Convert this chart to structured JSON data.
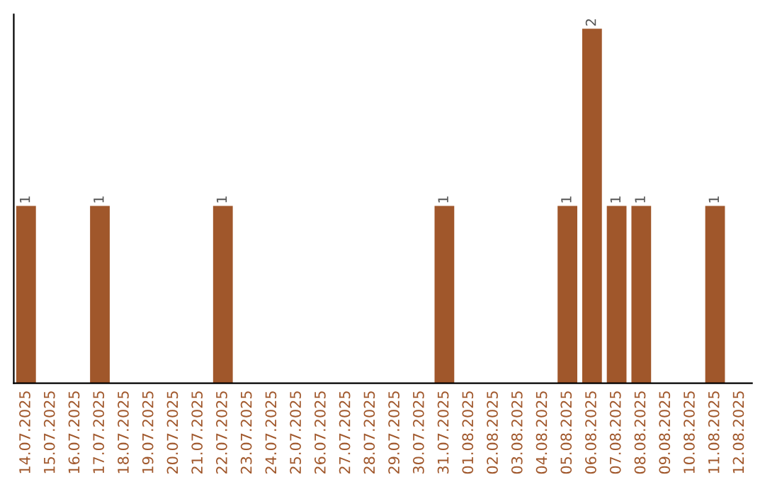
{
  "chart_data": {
    "type": "bar",
    "categories": [
      "14.07.2025",
      "15.07.2025",
      "16.07.2025",
      "17.07.2025",
      "18.07.2025",
      "19.07.2025",
      "20.07.2025",
      "21.07.2025",
      "22.07.2025",
      "23.07.2025",
      "24.07.2025",
      "25.07.2025",
      "26.07.2025",
      "27.07.2025",
      "28.07.2025",
      "29.07.2025",
      "30.07.2025",
      "31.07.2025",
      "01.08.2025",
      "02.08.2025",
      "03.08.2025",
      "04.08.2025",
      "05.08.2025",
      "06.08.2025",
      "07.08.2025",
      "08.08.2025",
      "09.08.2025",
      "10.08.2025",
      "11.08.2025",
      "12.08.2025"
    ],
    "values": [
      1,
      0,
      0,
      1,
      0,
      0,
      0,
      0,
      1,
      0,
      0,
      0,
      0,
      0,
      0,
      0,
      0,
      1,
      0,
      0,
      0,
      0,
      1,
      2,
      1,
      1,
      0,
      0,
      1,
      0
    ],
    "value_labels": [
      "1",
      null,
      null,
      "1",
      null,
      null,
      null,
      null,
      "1",
      null,
      null,
      null,
      null,
      null,
      null,
      null,
      null,
      "1",
      null,
      null,
      null,
      null,
      "1",
      "2",
      "1",
      "1",
      null,
      null,
      "1",
      null
    ],
    "color": "#a0572b",
    "ylim": [
      0,
      2.08
    ],
    "tick_labels": "x",
    "grid": false,
    "legend": false
  }
}
